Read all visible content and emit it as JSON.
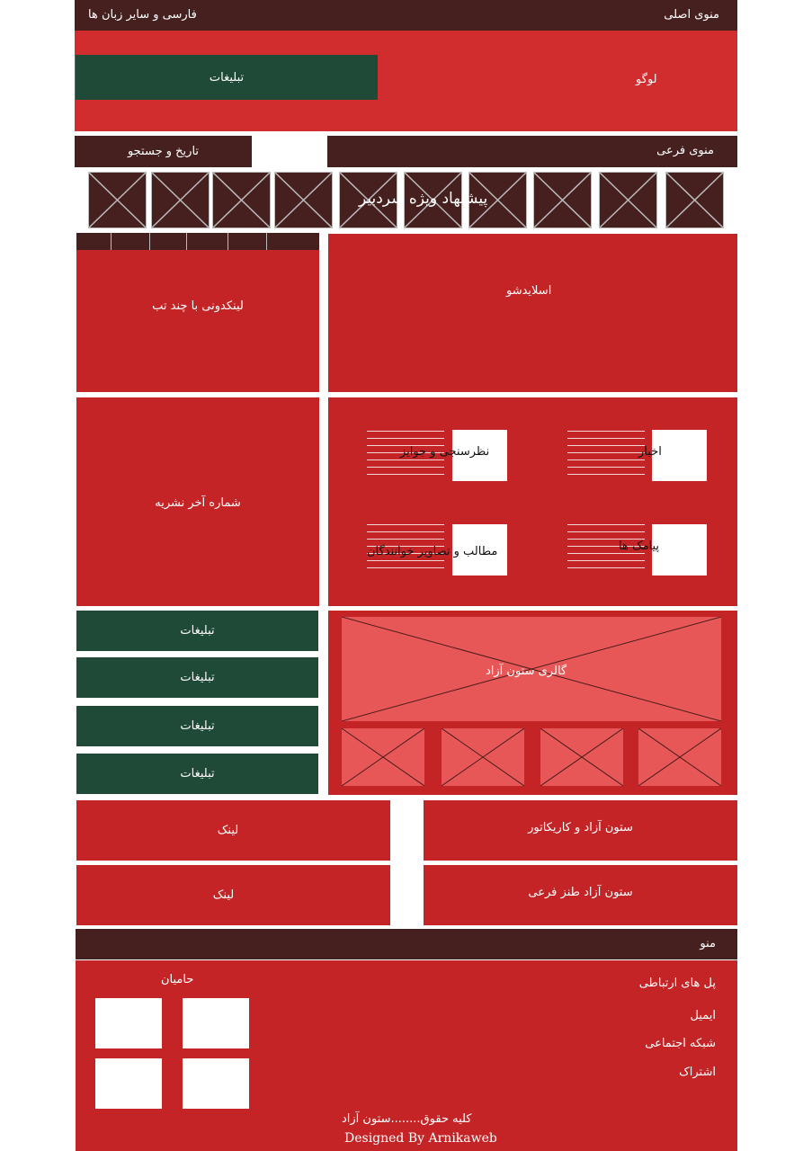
{
  "top_bar": {
    "languages": "فارسی و سایر زبان ها",
    "main_menu": "منوی اصلی"
  },
  "header": {
    "ad": "تبلیغات",
    "logo": "لوگو"
  },
  "nav": {
    "date_search": "تاریخ و جستجو",
    "sub_menu": "منوی فرعی"
  },
  "editor_picks": "پیشنهاد ویژه سردبیر",
  "linkbox": "لینکدونی با چند تب",
  "slideshow": "اسلایدشو",
  "last_issue": "شماره آخر نشریه",
  "sections": {
    "news": "اخبار",
    "polls": "نظرسنجی و جوایز",
    "sms": "پیامک ها",
    "reader_content": "مطالب و تصاویر خوانندگان"
  },
  "ads": [
    "تبلیغات",
    "تبلیغات",
    "تبلیغات",
    "تبلیغات"
  ],
  "gallery": "گالری ستون آزاد",
  "links": [
    "لینک",
    "لینک"
  ],
  "columns": {
    "caricature": "ستون آزاد و کاریکاتور",
    "satire": "ستون آزاد طنز فرعی"
  },
  "menu_bar": "منو",
  "footer": {
    "sponsors": "حامیان",
    "contact": [
      "پل های ارتباطی",
      "ایمیل",
      "شبکه اجتماعی",
      "اشتراک"
    ],
    "copyright": "کلیه حقوق........ستون آزاد",
    "designed_by": "Designed By Arnikaweb"
  },
  "colors": {
    "dark": "#45201f",
    "red": "#c42426",
    "green": "#1f4a37",
    "gallery": "#e85757"
  }
}
